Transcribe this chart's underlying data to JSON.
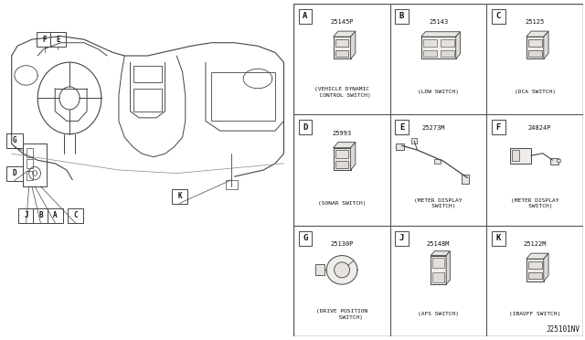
{
  "bg_color": "#ffffff",
  "border_color": "#555555",
  "line_color": "#444444",
  "text_color": "#111111",
  "grid_cells": [
    {
      "label": "A",
      "part_num": "25145P",
      "desc": "(VEHICLE DYNAMIC\n  CONTROL SWITCH)",
      "col": 0,
      "row": 0
    },
    {
      "label": "B",
      "part_num": "25143",
      "desc": "(LDW SWITCH)",
      "col": 1,
      "row": 0
    },
    {
      "label": "C",
      "part_num": "25125",
      "desc": "(DCA SWITCH)",
      "col": 2,
      "row": 0
    },
    {
      "label": "D",
      "part_num": "25993",
      "desc": "(SONAR SWITCH)",
      "col": 0,
      "row": 1
    },
    {
      "label": "E",
      "part_num": "25273M",
      "desc": "(METER DISPLAY\n   SWITCH)",
      "col": 1,
      "row": 1
    },
    {
      "label": "F",
      "part_num": "24824P",
      "desc": "(METER DISPLAY\n   SWITCH)",
      "col": 2,
      "row": 1
    },
    {
      "label": "G",
      "part_num": "25130P",
      "desc": "(DRIVE POSITION\n     SWITCH)",
      "col": 0,
      "row": 2
    },
    {
      "label": "J",
      "part_num": "25148M",
      "desc": "(AFS SWITCH)",
      "col": 1,
      "row": 2
    },
    {
      "label": "K",
      "part_num": "25122M",
      "desc": "(IBAOFF SWITCH)",
      "col": 2,
      "row": 2
    }
  ],
  "footnote": "J25101NV"
}
